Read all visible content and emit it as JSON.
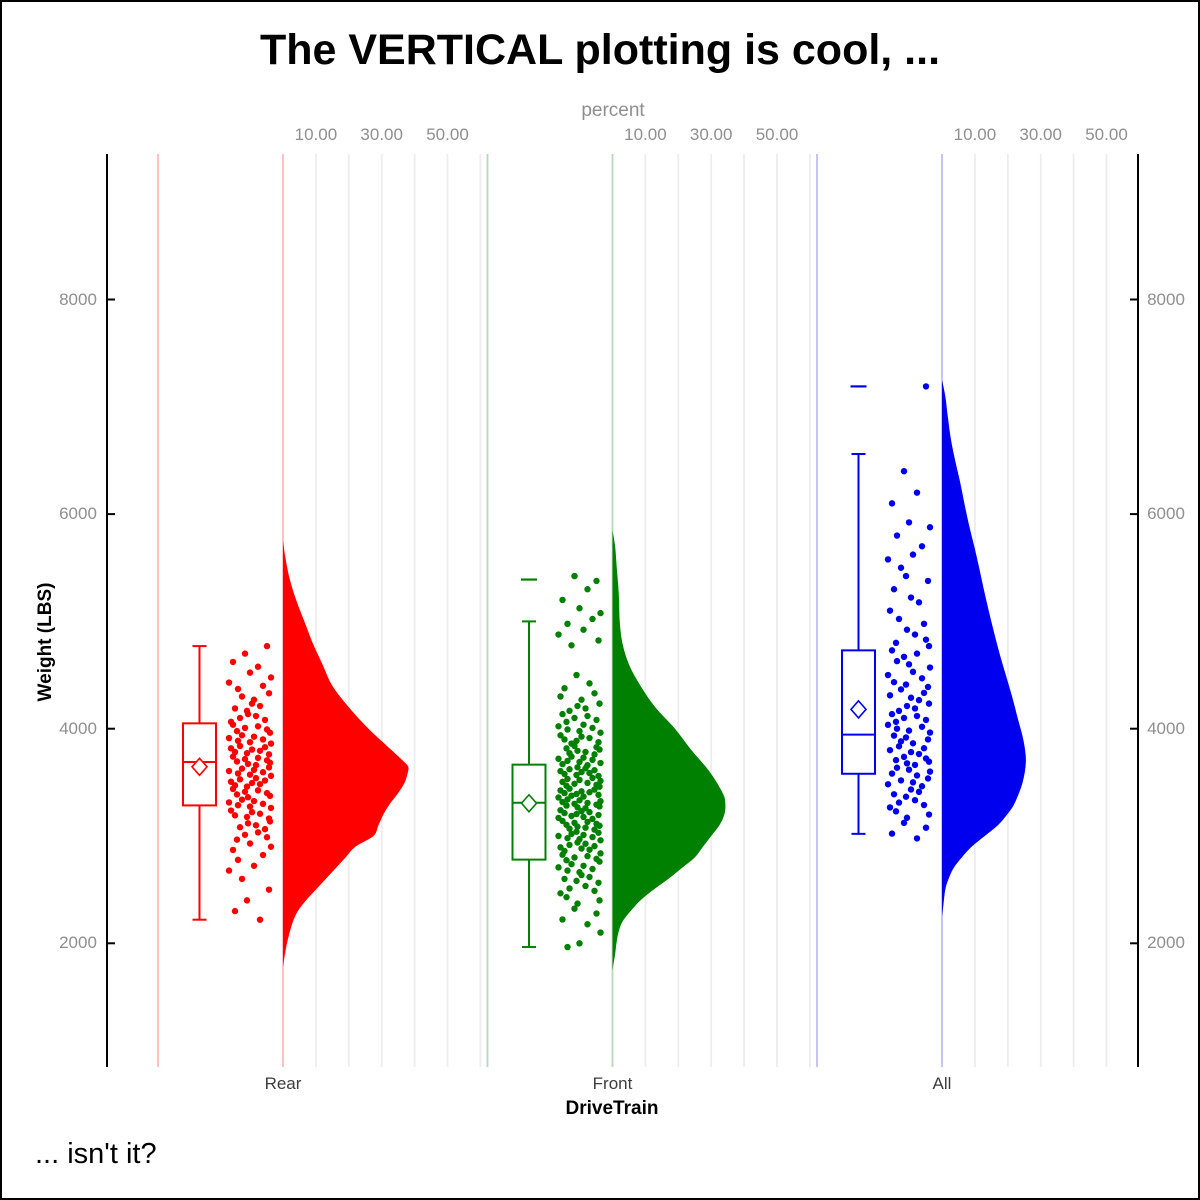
{
  "title": "The VERTICAL plotting is cool, ...",
  "footnote": "... isn't it?",
  "colors": {
    "background": "#ffffff",
    "frame": "#000000",
    "axis": "#000000",
    "gridline": "#ededed",
    "tick_label": "#8f8f8f",
    "top_axis_title": "#8f8f8f",
    "category_label": "#3d3d3d",
    "text": "#000000"
  },
  "chart_data": {
    "type": "raincloud",
    "subtype": "vertical half-violin + box plot + jittered points, one panel per category",
    "title": "The VERTICAL plotting is cool, ...",
    "footnote": "... isn't it?",
    "xlabel": "DriveTrain",
    "ylabel": "Weight (LBS)",
    "top_axis_label": "percent",
    "categories": [
      "Rear",
      "Front",
      "All"
    ],
    "y_ticks": [
      2000,
      4000,
      6000,
      8000
    ],
    "y_tick_labels": [
      "2000",
      "4000",
      "6000",
      "8000"
    ],
    "y_axis_sides": "left and right",
    "y_range_approx": [
      900,
      9300
    ],
    "percent_ticks": [
      10,
      30,
      50
    ],
    "percent_tick_labels": [
      "10.00",
      "30.00",
      "50.00"
    ],
    "percent_gridlines": [
      10,
      20,
      30,
      40,
      50,
      60
    ],
    "legend_position": "none",
    "grid": "light vertical percent gridlines inside each category panel",
    "jitter_dx_cycle": [
      -16,
      -38,
      -25,
      -50,
      -12,
      -33,
      -45,
      -20,
      -54,
      -29,
      -41,
      -14,
      -36,
      -48,
      -23,
      -31,
      -52,
      -18,
      -43,
      -27,
      -35,
      -13,
      -46
    ],
    "groups": [
      {
        "name": "Rear",
        "color": "#ff0000",
        "light_color": "#ffbcbc",
        "box": {
          "whisker_low": 2220,
          "q1": 3285,
          "median": 3690,
          "mean": 3645,
          "q3": 4050,
          "whisker_high": 4770,
          "outliers": []
        },
        "density": [
          [
            5750,
            0
          ],
          [
            5600,
            0.7
          ],
          [
            5400,
            2
          ],
          [
            5200,
            4
          ],
          [
            5000,
            6.5
          ],
          [
            4800,
            9
          ],
          [
            4600,
            12
          ],
          [
            4400,
            15
          ],
          [
            4200,
            20
          ],
          [
            4000,
            26
          ],
          [
            3800,
            33
          ],
          [
            3700,
            36.5
          ],
          [
            3650,
            38
          ],
          [
            3600,
            38
          ],
          [
            3500,
            37
          ],
          [
            3400,
            35
          ],
          [
            3300,
            32.5
          ],
          [
            3200,
            30.5
          ],
          [
            3100,
            29
          ],
          [
            3000,
            27.5
          ],
          [
            2900,
            22
          ],
          [
            2800,
            19
          ],
          [
            2700,
            16
          ],
          [
            2600,
            13
          ],
          [
            2500,
            10
          ],
          [
            2400,
            7
          ],
          [
            2300,
            4.5
          ],
          [
            2200,
            3
          ],
          [
            2100,
            2
          ],
          [
            2000,
            1.2
          ],
          [
            1900,
            0.6
          ],
          [
            1780,
            0
          ]
        ],
        "jitter_strata": [
          [
            4770,
            1
          ],
          [
            4700,
            1
          ],
          [
            4600,
            2
          ],
          [
            4500,
            2
          ],
          [
            4400,
            3
          ],
          [
            4300,
            3
          ],
          [
            4200,
            4
          ],
          [
            4100,
            5
          ],
          [
            4000,
            6
          ],
          [
            3900,
            7
          ],
          [
            3800,
            8
          ],
          [
            3700,
            8
          ],
          [
            3600,
            8
          ],
          [
            3500,
            8
          ],
          [
            3400,
            7
          ],
          [
            3300,
            7
          ],
          [
            3200,
            6
          ],
          [
            3100,
            5
          ],
          [
            3000,
            4
          ],
          [
            2900,
            3
          ],
          [
            2800,
            2
          ],
          [
            2700,
            2
          ],
          [
            2600,
            1
          ],
          [
            2500,
            1
          ],
          [
            2400,
            1
          ],
          [
            2300,
            1
          ],
          [
            2220,
            1
          ]
        ]
      },
      {
        "name": "Front",
        "color": "#008000",
        "light_color": "#b9d7b9",
        "box": {
          "whisker_low": 1965,
          "q1": 2780,
          "median": 3310,
          "mean": 3305,
          "q3": 3665,
          "whisker_high": 5000,
          "outliers": [
            5390
          ]
        },
        "density": [
          [
            5850,
            0
          ],
          [
            5700,
            0.8
          ],
          [
            5500,
            1.3
          ],
          [
            5350,
            1.7
          ],
          [
            5200,
            2
          ],
          [
            5000,
            2.2
          ],
          [
            4800,
            3
          ],
          [
            4600,
            5
          ],
          [
            4400,
            8.5
          ],
          [
            4200,
            13
          ],
          [
            4000,
            19
          ],
          [
            3800,
            24
          ],
          [
            3600,
            29.5
          ],
          [
            3400,
            33.5
          ],
          [
            3300,
            34.3
          ],
          [
            3200,
            34
          ],
          [
            3100,
            32.5
          ],
          [
            3000,
            30
          ],
          [
            2900,
            27.5
          ],
          [
            2800,
            25
          ],
          [
            2700,
            21
          ],
          [
            2600,
            17
          ],
          [
            2500,
            12.5
          ],
          [
            2400,
            8.5
          ],
          [
            2300,
            5.5
          ],
          [
            2200,
            3
          ],
          [
            2100,
            1.8
          ],
          [
            2000,
            1.2
          ],
          [
            1900,
            0.8
          ],
          [
            1750,
            0
          ]
        ],
        "jitter_strata": [
          [
            5400,
            2
          ],
          [
            5300,
            1
          ],
          [
            5200,
            1
          ],
          [
            5100,
            2
          ],
          [
            5000,
            2
          ],
          [
            4900,
            2
          ],
          [
            4800,
            2
          ],
          [
            4500,
            1
          ],
          [
            4400,
            2
          ],
          [
            4300,
            3
          ],
          [
            4200,
            4
          ],
          [
            4100,
            5
          ],
          [
            4000,
            6
          ],
          [
            3900,
            7
          ],
          [
            3800,
            8
          ],
          [
            3700,
            9
          ],
          [
            3600,
            10
          ],
          [
            3500,
            10
          ],
          [
            3400,
            11
          ],
          [
            3300,
            11
          ],
          [
            3200,
            10
          ],
          [
            3100,
            10
          ],
          [
            3000,
            9
          ],
          [
            2900,
            8
          ],
          [
            2800,
            7
          ],
          [
            2700,
            6
          ],
          [
            2600,
            5
          ],
          [
            2500,
            4
          ],
          [
            2400,
            3
          ],
          [
            2300,
            2
          ],
          [
            2200,
            2
          ],
          [
            2100,
            1
          ],
          [
            2000,
            1
          ],
          [
            1965,
            1
          ]
        ]
      },
      {
        "name": "All",
        "color": "#0000ee",
        "light_color": "#bfbff2",
        "box": {
          "whisker_low": 3020,
          "q1": 3580,
          "median": 3945,
          "mean": 4180,
          "q3": 4730,
          "whisker_high": 6560,
          "outliers": [
            7190
          ]
        },
        "density": [
          [
            7250,
            0
          ],
          [
            7100,
            1
          ],
          [
            6900,
            1.8
          ],
          [
            6700,
            2.7
          ],
          [
            6500,
            4
          ],
          [
            6300,
            5.5
          ],
          [
            6100,
            6.8
          ],
          [
            5900,
            8.2
          ],
          [
            5700,
            9.8
          ],
          [
            5500,
            11.3
          ],
          [
            5300,
            12.7
          ],
          [
            5100,
            14.2
          ],
          [
            4900,
            15.8
          ],
          [
            4700,
            17.5
          ],
          [
            4500,
            19.4
          ],
          [
            4300,
            21.3
          ],
          [
            4100,
            23
          ],
          [
            3900,
            24.7
          ],
          [
            3700,
            25.5
          ],
          [
            3500,
            24.5
          ],
          [
            3300,
            22
          ],
          [
            3200,
            19.8
          ],
          [
            3100,
            17
          ],
          [
            3000,
            13
          ],
          [
            2900,
            9
          ],
          [
            2800,
            6
          ],
          [
            2700,
            3.5
          ],
          [
            2600,
            2
          ],
          [
            2500,
            1
          ],
          [
            2350,
            0.4
          ],
          [
            2250,
            0
          ]
        ],
        "jitter_strata": [
          [
            7190,
            1
          ],
          [
            6400,
            1
          ],
          [
            6200,
            1
          ],
          [
            6100,
            1
          ],
          [
            5900,
            2
          ],
          [
            5800,
            1
          ],
          [
            5700,
            1
          ],
          [
            5600,
            2
          ],
          [
            5500,
            1
          ],
          [
            5400,
            2
          ],
          [
            5300,
            1
          ],
          [
            5200,
            2
          ],
          [
            5100,
            1
          ],
          [
            5000,
            2
          ],
          [
            4900,
            2
          ],
          [
            4800,
            3
          ],
          [
            4700,
            3
          ],
          [
            4600,
            3
          ],
          [
            4500,
            3
          ],
          [
            4400,
            4
          ],
          [
            4300,
            4
          ],
          [
            4200,
            4
          ],
          [
            4100,
            5
          ],
          [
            4000,
            5
          ],
          [
            3900,
            5
          ],
          [
            3800,
            5
          ],
          [
            3700,
            6
          ],
          [
            3600,
            5
          ],
          [
            3500,
            5
          ],
          [
            3400,
            4
          ],
          [
            3300,
            4
          ],
          [
            3200,
            3
          ],
          [
            3100,
            2
          ],
          [
            3000,
            2
          ]
        ]
      }
    ]
  }
}
